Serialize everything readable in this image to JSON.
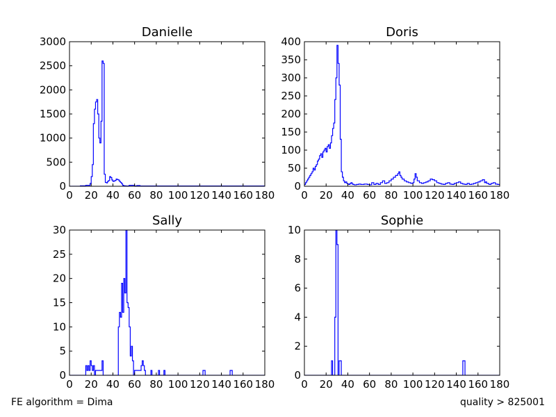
{
  "footer": {
    "left": "FE algorithm = Dima",
    "right": "quality > 825001"
  },
  "style": {
    "line_color": "#0000ff",
    "axis_color": "#000000"
  },
  "chart_data": [
    {
      "type": "step",
      "title": "Danielle",
      "xlabel": "",
      "ylabel": "",
      "xlim": [
        0,
        180
      ],
      "ylim": [
        0,
        3000
      ],
      "xticks": [
        0,
        20,
        40,
        60,
        80,
        100,
        120,
        140,
        160,
        180
      ],
      "yticks": [
        0,
        500,
        1000,
        1500,
        2000,
        2500,
        3000
      ],
      "bin_width": 1,
      "series": [
        {
          "x": [
            0,
            10,
            15,
            19,
            20,
            21,
            22,
            23,
            24,
            25,
            26,
            27,
            28,
            29,
            30,
            31,
            32,
            33,
            34,
            35,
            36,
            37,
            38,
            39,
            40,
            41,
            42,
            43,
            44,
            45,
            46,
            47,
            48,
            49,
            50,
            52,
            55,
            60,
            62,
            65,
            180
          ],
          "y": [
            0,
            10,
            20,
            60,
            200,
            450,
            1300,
            1600,
            1750,
            1800,
            1500,
            1000,
            900,
            1350,
            2600,
            2550,
            250,
            80,
            70,
            100,
            120,
            200,
            180,
            130,
            100,
            110,
            120,
            150,
            140,
            130,
            100,
            80,
            50,
            20,
            10,
            5,
            20,
            5,
            15,
            5,
            0
          ]
        }
      ]
    },
    {
      "type": "step",
      "title": "Doris",
      "xlabel": "",
      "ylabel": "",
      "xlim": [
        0,
        180
      ],
      "ylim": [
        0,
        400
      ],
      "xticks": [
        0,
        20,
        40,
        60,
        80,
        100,
        120,
        140,
        160,
        180
      ],
      "yticks": [
        0,
        50,
        100,
        150,
        200,
        250,
        300,
        350,
        400
      ],
      "bin_width": 1,
      "series": [
        {
          "x": [
            0,
            1,
            2,
            3,
            4,
            5,
            6,
            7,
            8,
            9,
            10,
            11,
            12,
            13,
            14,
            15,
            16,
            17,
            18,
            19,
            20,
            21,
            22,
            23,
            24,
            25,
            26,
            27,
            28,
            29,
            30,
            31,
            32,
            33,
            34,
            35,
            36,
            37,
            38,
            39,
            40,
            41,
            42,
            43,
            44,
            45,
            46,
            48,
            50,
            52,
            55,
            58,
            60,
            62,
            64,
            66,
            68,
            70,
            72,
            74,
            76,
            78,
            80,
            82,
            84,
            86,
            87,
            88,
            89,
            90,
            92,
            94,
            96,
            98,
            100,
            101,
            102,
            103,
            104,
            106,
            108,
            110,
            112,
            114,
            116,
            118,
            120,
            122,
            124,
            126,
            128,
            130,
            132,
            134,
            136,
            138,
            140,
            142,
            144,
            146,
            148,
            150,
            152,
            154,
            156,
            158,
            160,
            162,
            164,
            166,
            167,
            168,
            170,
            172,
            174,
            176,
            178,
            180
          ],
          "y": [
            5,
            10,
            15,
            20,
            25,
            30,
            35,
            40,
            50,
            45,
            55,
            60,
            70,
            75,
            85,
            90,
            80,
            95,
            100,
            105,
            95,
            110,
            115,
            105,
            120,
            140,
            160,
            175,
            240,
            300,
            390,
            340,
            280,
            130,
            40,
            25,
            15,
            10,
            12,
            8,
            6,
            5,
            8,
            10,
            6,
            5,
            4,
            5,
            6,
            5,
            6,
            5,
            4,
            10,
            5,
            8,
            5,
            10,
            15,
            8,
            10,
            15,
            20,
            25,
            30,
            35,
            40,
            30,
            25,
            20,
            15,
            12,
            10,
            8,
            10,
            20,
            35,
            25,
            15,
            10,
            8,
            10,
            12,
            15,
            20,
            18,
            15,
            10,
            8,
            6,
            5,
            8,
            10,
            6,
            5,
            8,
            10,
            12,
            8,
            6,
            5,
            8,
            5,
            6,
            8,
            10,
            12,
            15,
            18,
            10,
            12,
            8,
            5,
            8,
            10,
            6,
            5,
            0
          ]
        }
      ]
    },
    {
      "type": "step",
      "title": "Sally",
      "xlabel": "",
      "ylabel": "",
      "xlim": [
        0,
        180
      ],
      "ylim": [
        0,
        30
      ],
      "xticks": [
        0,
        20,
        40,
        60,
        80,
        100,
        120,
        140,
        160,
        180
      ],
      "yticks": [
        0,
        5,
        10,
        15,
        20,
        25,
        30
      ],
      "bin_width": 1,
      "series": [
        {
          "x": [
            0,
            15,
            16,
            17,
            18,
            19,
            20,
            21,
            22,
            23,
            24,
            30,
            31,
            32,
            45,
            46,
            47,
            48,
            49,
            50,
            51,
            52,
            53,
            54,
            55,
            56,
            57,
            58,
            59,
            60,
            66,
            67,
            68,
            69,
            70,
            75,
            76,
            82,
            83,
            87,
            88,
            123,
            124,
            125,
            148,
            149,
            150,
            180
          ],
          "y": [
            0,
            2,
            1,
            2,
            1,
            3,
            2,
            1,
            2,
            0,
            1,
            3,
            0,
            0,
            10,
            13,
            12,
            19,
            13,
            20,
            17,
            30,
            15,
            14,
            10,
            4,
            6,
            3,
            0,
            1,
            2,
            3,
            2,
            1,
            0,
            1,
            0,
            1,
            0,
            1,
            0,
            1,
            1,
            0,
            1,
            1,
            0,
            0
          ]
        }
      ]
    },
    {
      "type": "step",
      "title": "Sophie",
      "xlabel": "",
      "ylabel": "",
      "xlim": [
        0,
        180
      ],
      "ylim": [
        0,
        10
      ],
      "xticks": [
        0,
        20,
        40,
        60,
        80,
        100,
        120,
        140,
        160,
        180
      ],
      "yticks": [
        0,
        2,
        4,
        6,
        8,
        10
      ],
      "bin_width": 1,
      "series": [
        {
          "x": [
            0,
            25,
            26,
            28,
            29,
            30,
            31,
            32,
            33,
            34,
            35,
            146,
            147,
            148,
            180
          ],
          "y": [
            0,
            1,
            0,
            4,
            10,
            9,
            0,
            1,
            1,
            0,
            0,
            1,
            1,
            0,
            0
          ]
        }
      ]
    }
  ]
}
